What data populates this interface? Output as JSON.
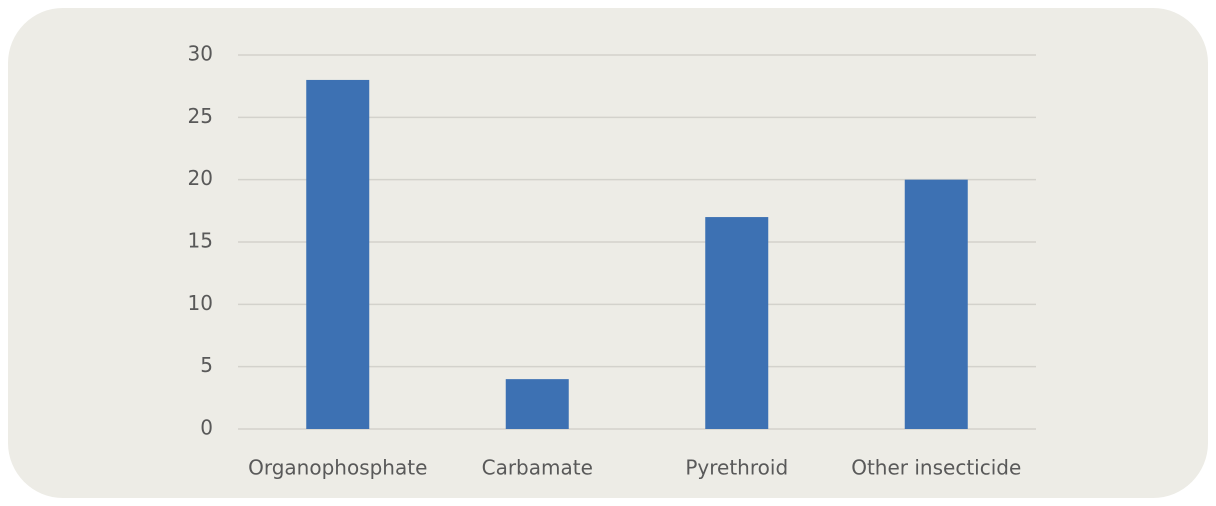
{
  "chart_data": {
    "type": "bar",
    "categories": [
      "Organophosphate",
      "Carbamate",
      "Pyrethroid",
      "Other insecticide"
    ],
    "values": [
      28,
      4,
      17,
      20
    ],
    "color": "#3d71b3",
    "ylim": [
      0,
      30
    ],
    "yticks": [
      0,
      5,
      10,
      15,
      20,
      25,
      30
    ],
    "grid": true
  }
}
